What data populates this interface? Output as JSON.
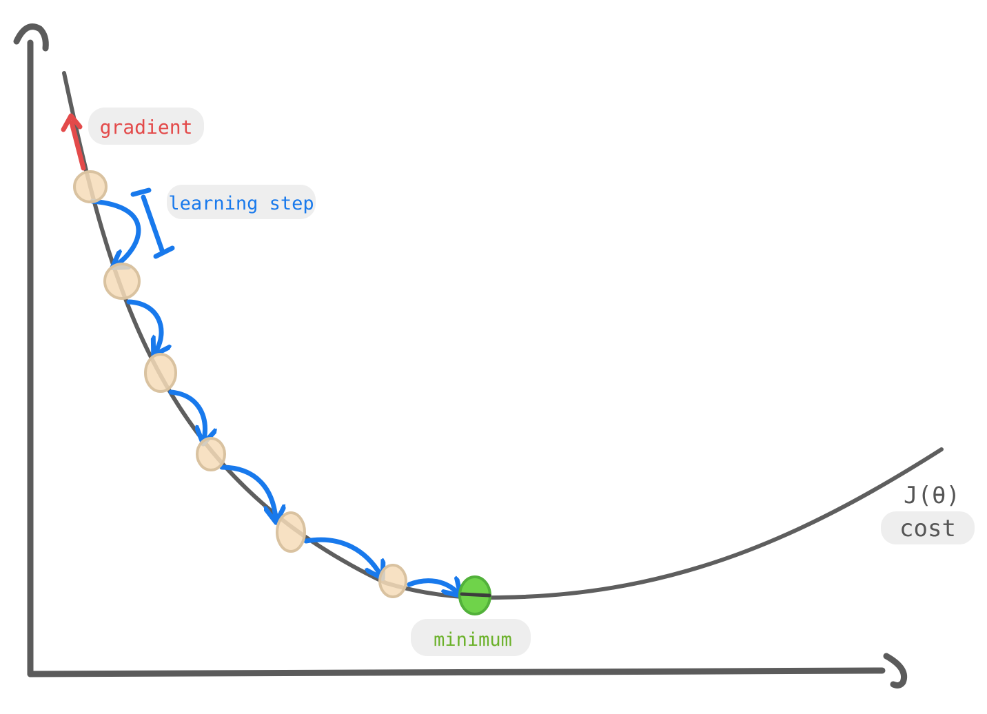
{
  "labels": {
    "gradient": "gradient",
    "learning_step": "learning step",
    "cost_symbol": "J(θ)",
    "cost": "cost",
    "minimum": "minimum"
  },
  "colors": {
    "axis": "#5b5b5b",
    "curve": "#5e5e5e",
    "gradient": "#e34a4a",
    "step": "#1879ec",
    "point_fill": "#f6dcb8",
    "point_stroke": "#d9c2a0",
    "minimum_fill": "#6fd34a",
    "minimum_stroke": "#52b13a",
    "minimum_text": "#6bb12a",
    "label_bg": "#eeeeee",
    "cost_text": "#555555"
  },
  "steps_shown": 6
}
